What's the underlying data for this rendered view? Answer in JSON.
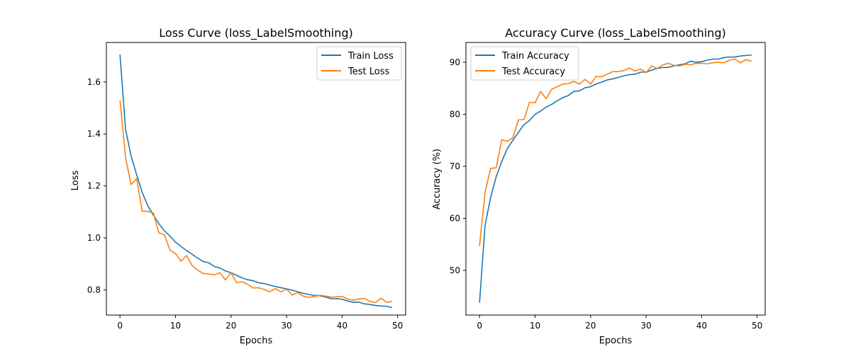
{
  "colors": {
    "train": "#1f77b4",
    "test": "#ff7f0e"
  },
  "chart_data": [
    {
      "type": "line",
      "title": "Loss Curve (loss_LabelSmoothing)",
      "xlabel": "Epochs",
      "ylabel": "Loss",
      "xlim": [
        -2.45,
        51.45
      ],
      "ylim": [
        0.703,
        1.752
      ],
      "xticks": [
        0,
        10,
        20,
        30,
        40,
        50
      ],
      "xtick_labels": [
        "0",
        "10",
        "20",
        "30",
        "40",
        "50"
      ],
      "yticks": [
        0.8,
        1.0,
        1.2,
        1.4,
        1.6
      ],
      "ytick_labels": [
        "0.8",
        "1.0",
        "1.2",
        "1.4",
        "1.6"
      ],
      "legend": "upper-right",
      "grid": false,
      "x": [
        0,
        1,
        2,
        3,
        4,
        5,
        6,
        7,
        8,
        9,
        10,
        11,
        12,
        13,
        14,
        15,
        16,
        17,
        18,
        19,
        20,
        21,
        22,
        23,
        24,
        25,
        26,
        27,
        28,
        29,
        30,
        31,
        32,
        33,
        34,
        35,
        36,
        37,
        38,
        39,
        40,
        41,
        42,
        43,
        44,
        45,
        46,
        47,
        48,
        49
      ],
      "series": [
        {
          "name": "Train Loss",
          "values": [
            1.705,
            1.418,
            1.315,
            1.243,
            1.175,
            1.124,
            1.088,
            1.055,
            1.027,
            1.007,
            0.984,
            0.967,
            0.951,
            0.937,
            0.922,
            0.909,
            0.904,
            0.89,
            0.884,
            0.873,
            0.866,
            0.856,
            0.846,
            0.839,
            0.835,
            0.827,
            0.824,
            0.818,
            0.813,
            0.808,
            0.804,
            0.799,
            0.793,
            0.787,
            0.782,
            0.779,
            0.777,
            0.773,
            0.766,
            0.766,
            0.764,
            0.757,
            0.752,
            0.753,
            0.746,
            0.744,
            0.74,
            0.738,
            0.737,
            0.732
          ]
        },
        {
          "name": "Test Loss",
          "values": [
            1.53,
            1.31,
            1.205,
            1.228,
            1.103,
            1.102,
            1.096,
            1.02,
            1.012,
            0.953,
            0.94,
            0.91,
            0.932,
            0.893,
            0.876,
            0.863,
            0.861,
            0.858,
            0.866,
            0.838,
            0.866,
            0.828,
            0.831,
            0.821,
            0.807,
            0.808,
            0.801,
            0.793,
            0.805,
            0.792,
            0.803,
            0.78,
            0.79,
            0.776,
            0.771,
            0.774,
            0.779,
            0.776,
            0.772,
            0.773,
            0.775,
            0.765,
            0.76,
            0.765,
            0.767,
            0.756,
            0.751,
            0.768,
            0.752,
            0.756
          ]
        }
      ]
    },
    {
      "type": "line",
      "title": "Accuracy Curve (loss_LabelSmoothing)",
      "xlabel": "Epochs",
      "ylabel": "Accuracy (%)",
      "xlim": [
        -2.45,
        51.45
      ],
      "ylim": [
        41.4,
        93.8
      ],
      "xticks": [
        0,
        10,
        20,
        30,
        40,
        50
      ],
      "xtick_labels": [
        "0",
        "10",
        "20",
        "30",
        "40",
        "50"
      ],
      "yticks": [
        50,
        60,
        70,
        80,
        90
      ],
      "ytick_labels": [
        "50",
        "60",
        "70",
        "80",
        "90"
      ],
      "legend": "upper-left",
      "grid": false,
      "x": [
        0,
        1,
        2,
        3,
        4,
        5,
        6,
        7,
        8,
        9,
        10,
        11,
        12,
        13,
        14,
        15,
        16,
        17,
        18,
        19,
        20,
        21,
        22,
        23,
        24,
        25,
        26,
        27,
        28,
        29,
        30,
        31,
        32,
        33,
        34,
        35,
        36,
        37,
        38,
        39,
        40,
        41,
        42,
        43,
        44,
        45,
        46,
        47,
        48,
        49
      ],
      "series": [
        {
          "name": "Train Accuracy",
          "values": [
            43.8,
            58.7,
            64.0,
            68.0,
            70.9,
            73.4,
            75.0,
            76.5,
            78.0,
            78.8,
            80.0,
            80.6,
            81.4,
            81.9,
            82.6,
            83.2,
            83.6,
            84.4,
            84.5,
            85.1,
            85.3,
            85.8,
            86.2,
            86.6,
            86.8,
            87.1,
            87.4,
            87.6,
            87.7,
            88.1,
            88.1,
            88.5,
            88.8,
            89.0,
            89.0,
            89.3,
            89.5,
            89.7,
            90.2,
            90.0,
            90.1,
            90.4,
            90.6,
            90.6,
            90.9,
            91.0,
            91.0,
            91.2,
            91.3,
            91.4
          ]
        },
        {
          "name": "Test Accuracy",
          "values": [
            54.7,
            65.0,
            69.6,
            69.7,
            75.1,
            74.8,
            75.5,
            78.9,
            79.0,
            82.3,
            82.2,
            84.4,
            83.0,
            84.8,
            85.3,
            85.8,
            85.9,
            86.3,
            85.8,
            86.7,
            85.8,
            87.3,
            87.2,
            87.7,
            88.2,
            88.2,
            88.4,
            88.9,
            88.3,
            88.7,
            88.0,
            89.3,
            88.8,
            89.5,
            89.8,
            89.4,
            89.3,
            89.6,
            89.5,
            89.8,
            89.8,
            89.7,
            89.9,
            90.0,
            89.9,
            90.4,
            90.6,
            89.9,
            90.5,
            90.2
          ]
        }
      ]
    }
  ]
}
